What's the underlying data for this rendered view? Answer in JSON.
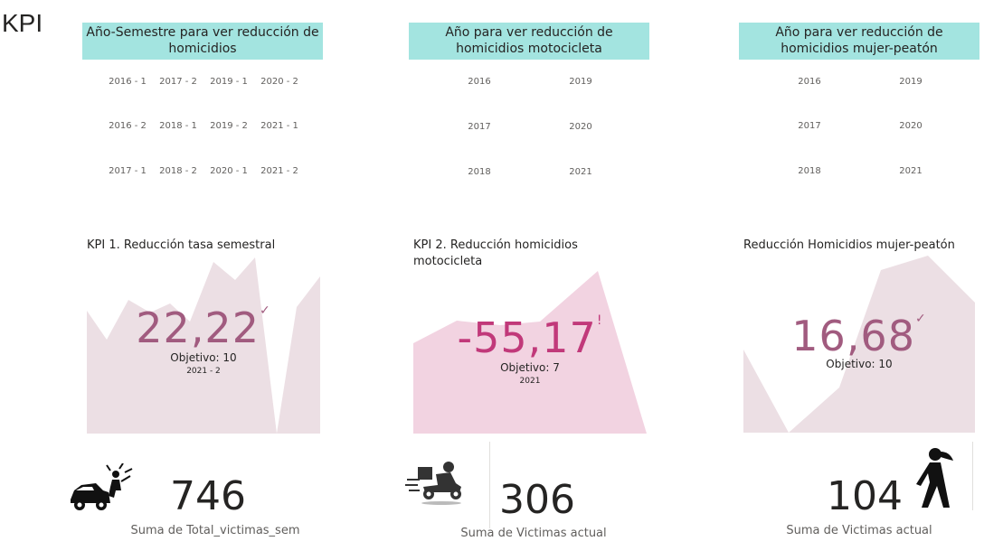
{
  "page": {
    "title": "KPI"
  },
  "slicers": [
    {
      "header": "Año-Semestre para ver reducción de homicidios",
      "items": [
        "2016 - 1",
        "2017 - 2",
        "2019 - 1",
        "2020 - 2",
        "2016 - 2",
        "2018 - 1",
        "2019 - 2",
        "2021 - 1",
        "2017 - 1",
        "2018 - 2",
        "2020 - 1",
        "2021 - 2"
      ]
    },
    {
      "header": "Año para ver reducción de homicidios motocicleta",
      "items": [
        "2016",
        "2019",
        "2017",
        "2020",
        "2018",
        "2021"
      ]
    },
    {
      "header": "Año para ver reducción de homicidios mujer-peatón",
      "items": [
        "2016",
        "2019",
        "2017",
        "2020",
        "2018",
        "2021"
      ]
    }
  ],
  "kpis": [
    {
      "title": "KPI 1. Reducción tasa semestral",
      "value": "22,22",
      "indicator": "✓",
      "target": "Objetivo: 10",
      "period": "2021 - 2",
      "value_color": "#a15b7f",
      "area_color": "#ecdfe4"
    },
    {
      "title": "KPI 2. Reducción homicidios motocicleta",
      "value": "-55,17",
      "indicator": "!",
      "target": "Objetivo: 7",
      "period": "2021",
      "value_color": "#c1397a",
      "area_color": "#f2d3e1"
    },
    {
      "title": "Reducción Homicidios mujer-peatón",
      "value": "16,68",
      "indicator": "✓",
      "target": "Objetivo: 10",
      "period": "",
      "value_color": "#a15b7f",
      "area_color": "#ecdfe4"
    }
  ],
  "cards": [
    {
      "value": "746",
      "label": "Suma de Total_victimas_sem",
      "icon": "car-crash-icon"
    },
    {
      "value": "306",
      "label": "Suma de Victimas actual",
      "icon": "motorcycle-delivery-icon"
    },
    {
      "value": "104",
      "label": "Suma de Victimas actual",
      "icon": "pedestrian-woman-icon"
    }
  ]
}
